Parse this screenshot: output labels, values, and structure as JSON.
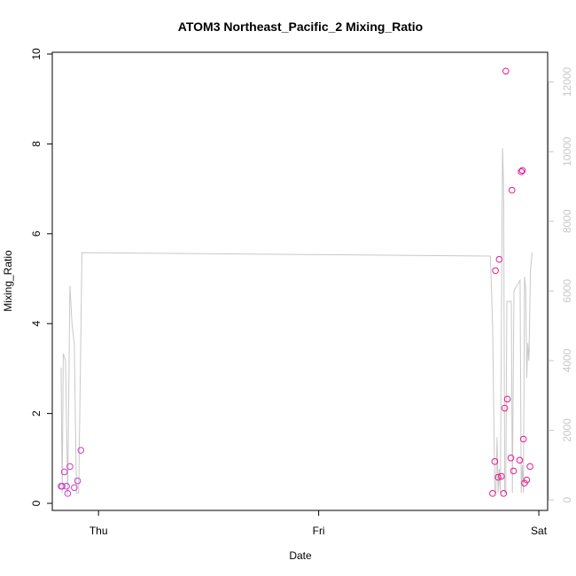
{
  "chart_data": {
    "type": "scatter",
    "title": "ATOM3 Northeast_Pacific_2 Mixing_Ratio",
    "xlabel": "Date",
    "ylabel": "Mixing_Ratio",
    "x_ticks": [
      {
        "label": "Thu",
        "x": 0.0
      },
      {
        "label": "Fri",
        "x": 1.0
      },
      {
        "label": "Sat",
        "x": 2.0
      }
    ],
    "xlim": [
      -0.21,
      2.04
    ],
    "ylim": [
      0,
      10
    ],
    "y_ticks": [
      0,
      2,
      4,
      6,
      8,
      10
    ],
    "y2lim": [
      -300,
      12800
    ],
    "y2_ticks": [
      0,
      2000,
      4000,
      6000,
      8000,
      10000,
      12000
    ],
    "colors": {
      "points": "#e8198b",
      "points_early": "#c83cc8",
      "secondary_line": "#c8c8c8",
      "axis": "#000000"
    },
    "series": [
      {
        "axis": "left",
        "style": "points",
        "x": [
          -0.17,
          -0.165,
          -0.155,
          -0.145,
          -0.14,
          -0.13,
          -0.11,
          -0.095,
          -0.08,
          1.79,
          1.8,
          1.803,
          1.815,
          1.82,
          1.83,
          1.84,
          1.845,
          1.85,
          1.857,
          1.873,
          1.878,
          1.885,
          1.913,
          1.92,
          1.925,
          1.93,
          1.935,
          1.945,
          1.96
        ],
        "y": [
          0.38,
          0.38,
          0.7,
          0.38,
          0.22,
          0.82,
          0.35,
          0.5,
          1.18,
          0.22,
          0.93,
          5.18,
          0.58,
          5.43,
          0.6,
          0.22,
          2.12,
          9.62,
          2.32,
          1.01,
          6.97,
          0.72,
          0.96,
          7.38,
          7.41,
          1.43,
          0.45,
          0.52,
          0.82
        ]
      },
      {
        "axis": "right",
        "style": "line",
        "x": [
          -0.17,
          -0.165,
          -0.16,
          -0.15,
          -0.14,
          -0.13,
          -0.12,
          -0.11,
          -0.1,
          -0.09,
          -0.075,
          1.78,
          1.79,
          1.8,
          1.805,
          1.81,
          1.815,
          1.82,
          1.825,
          1.835,
          1.84,
          1.845,
          1.85,
          1.855,
          1.86,
          1.87,
          1.875,
          1.88,
          1.887,
          1.895,
          1.905,
          1.915,
          1.92,
          1.925,
          1.93,
          1.935,
          1.94,
          1.945,
          1.95,
          1.955,
          1.962,
          1.97
        ],
        "y": [
          3800,
          200,
          4200,
          4000,
          150,
          6150,
          5000,
          4500,
          200,
          200,
          7100,
          7000,
          5000,
          200,
          200,
          1800,
          200,
          900,
          200,
          10100,
          9000,
          200,
          200,
          5700,
          5700,
          5700,
          5700,
          200,
          6000,
          6100,
          6200,
          6300,
          200,
          1000,
          200,
          6400,
          6100,
          3500,
          4500,
          4000,
          6600,
          7100
        ]
      }
    ]
  }
}
